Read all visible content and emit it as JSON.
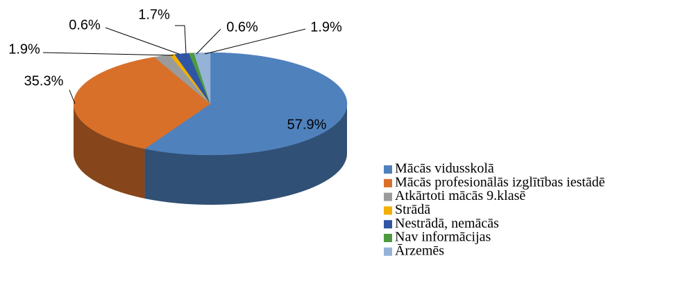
{
  "chart_data": {
    "type": "pie3d",
    "categories": [
      "Mācās vidusskolā",
      "Mācās profesionālās izglītības iestādē",
      "Atkārtoti mācās 9.klasē",
      "Strādā",
      "Nestrādā, nemācās",
      "Nav informācijas",
      "Ārzemēs"
    ],
    "values": [
      57.9,
      35.3,
      1.9,
      0.6,
      1.7,
      0.6,
      1.9
    ],
    "value_labels": [
      "57.9%",
      "35.3%",
      "1.9%",
      "0.6%",
      "1.7%",
      "0.6%",
      "1.9%"
    ],
    "colors": [
      "#4F81BD",
      "#D8702A",
      "#9B9B9B",
      "#F2B000",
      "#2F55A4",
      "#4E9A3E",
      "#95B3D7"
    ],
    "legend": "right"
  }
}
